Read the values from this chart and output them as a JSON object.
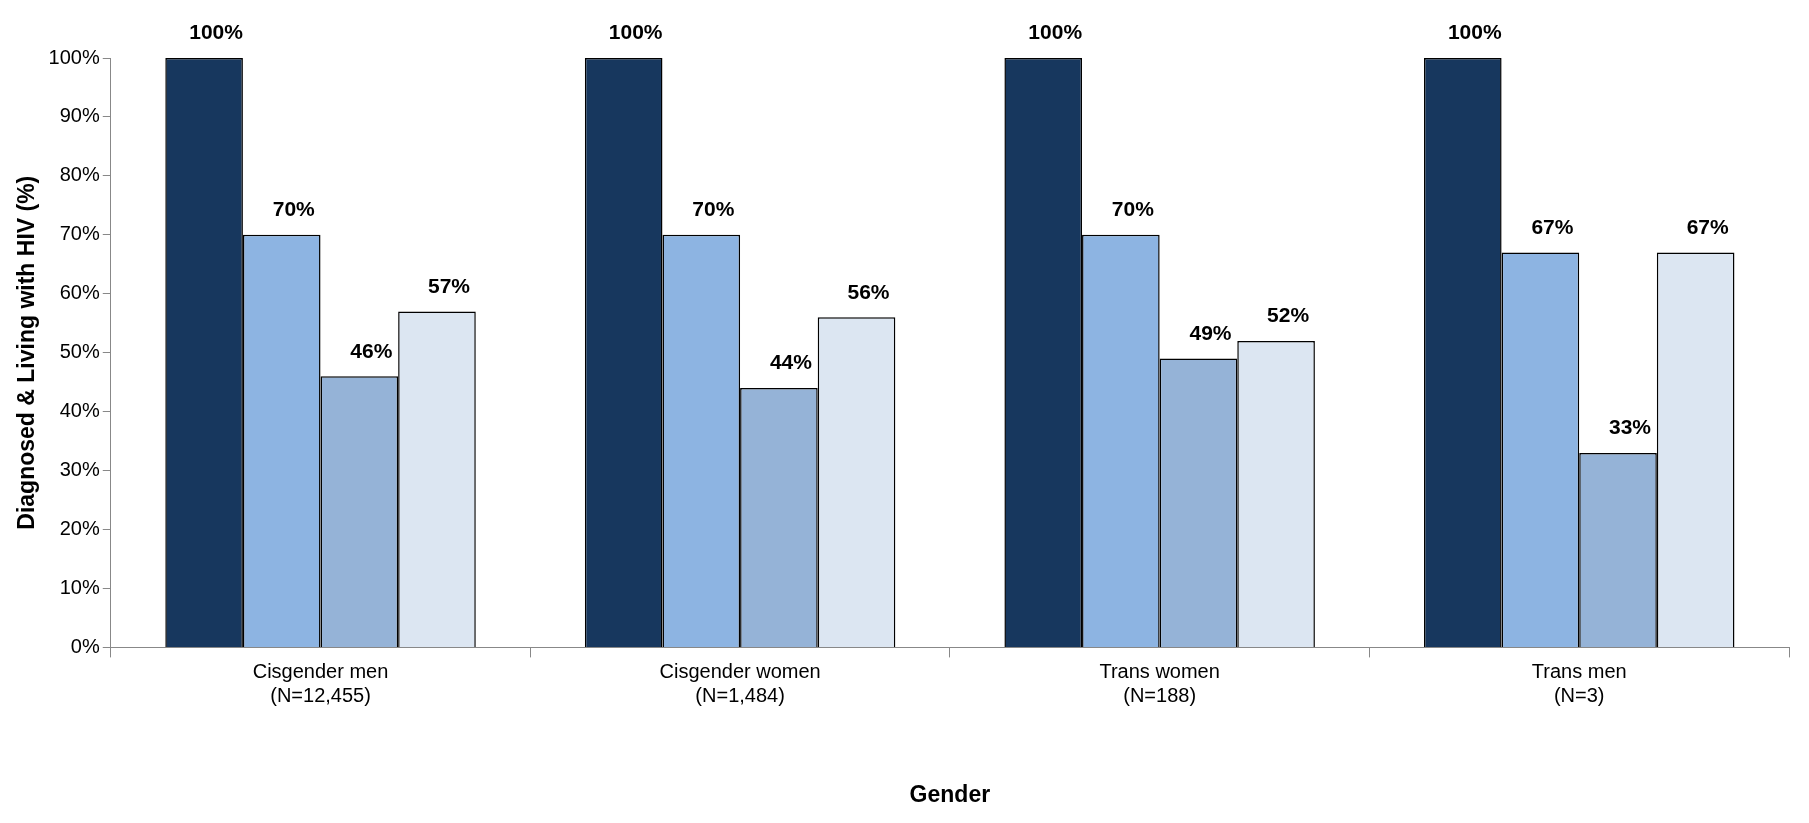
{
  "chart_data": {
    "type": "bar",
    "xlabel": "Gender",
    "ylabel": "Diagnosed & Living with HIV (%)",
    "categories": [
      "Cisgender men\n(N=12,455)",
      "Cisgender women\n(N=1,484)",
      "Trans women\n(N=188)",
      "Trans men\n(N=3)"
    ],
    "series": [
      {
        "color": "#17375e",
        "values": [
          100,
          100,
          100,
          100
        ],
        "value_labels": [
          "100%",
          "100%",
          "100%",
          "100%"
        ]
      },
      {
        "color": "#8db4e2",
        "values": [
          70,
          70,
          70,
          67
        ],
        "value_labels": [
          "70%",
          "70%",
          "70%",
          "67%"
        ]
      },
      {
        "color": "#95b3d7",
        "values": [
          46,
          44,
          49,
          33
        ],
        "value_labels": [
          "46%",
          "44%",
          "49%",
          "33%"
        ]
      },
      {
        "color": "#dce6f2",
        "values": [
          57,
          56,
          52,
          67
        ],
        "value_labels": [
          "57%",
          "56%",
          "52%",
          "67%"
        ]
      }
    ],
    "ylim": [
      0,
      100
    ],
    "yticks": [
      {
        "value": 0,
        "label": "0%"
      },
      {
        "value": 10,
        "label": "10%"
      },
      {
        "value": 20,
        "label": "20%"
      },
      {
        "value": 30,
        "label": "30%"
      },
      {
        "value": 40,
        "label": "40%"
      },
      {
        "value": 50,
        "label": "50%"
      },
      {
        "value": 60,
        "label": "60%"
      },
      {
        "value": 70,
        "label": "70%"
      },
      {
        "value": 80,
        "label": "80%"
      },
      {
        "value": 90,
        "label": "90%"
      },
      {
        "value": 100,
        "label": "100%"
      }
    ],
    "grid": false,
    "legend": false
  }
}
